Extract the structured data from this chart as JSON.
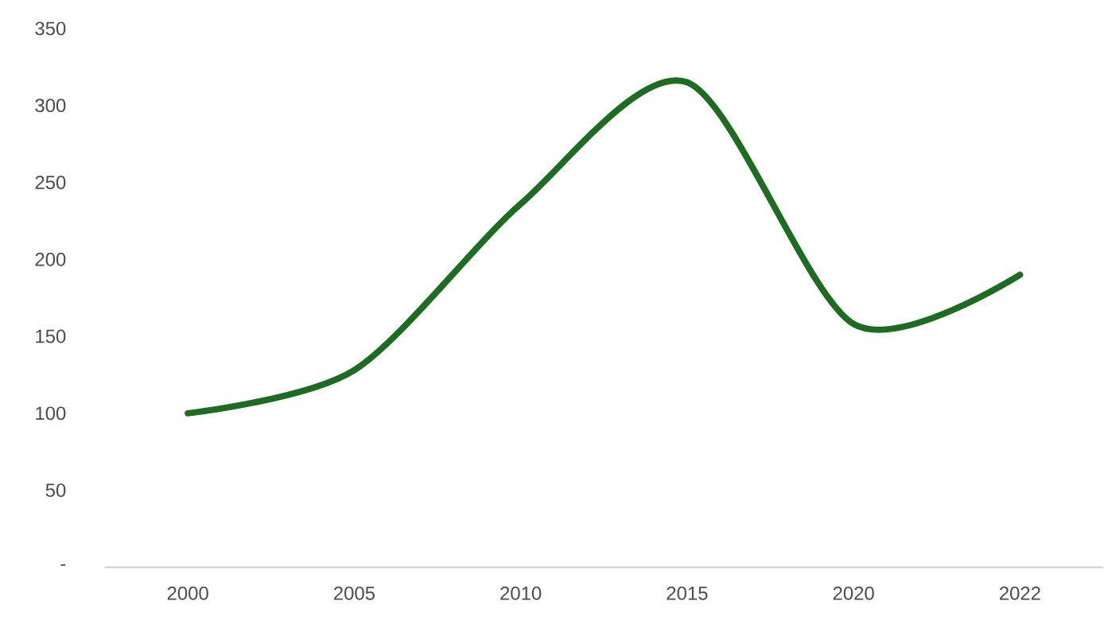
{
  "chart_data": {
    "type": "line",
    "categories": [
      "2000",
      "2005",
      "2010",
      "2015",
      "2020",
      "2022"
    ],
    "values": [
      100,
      128,
      236,
      315,
      158,
      190
    ],
    "color": "#1e6b22",
    "ylim": [
      0,
      350
    ],
    "yticks": [
      {
        "value": 0,
        "label": "-"
      },
      50,
      100,
      150,
      200,
      250,
      300,
      350
    ],
    "marker": "none",
    "line_style": "solid"
  }
}
